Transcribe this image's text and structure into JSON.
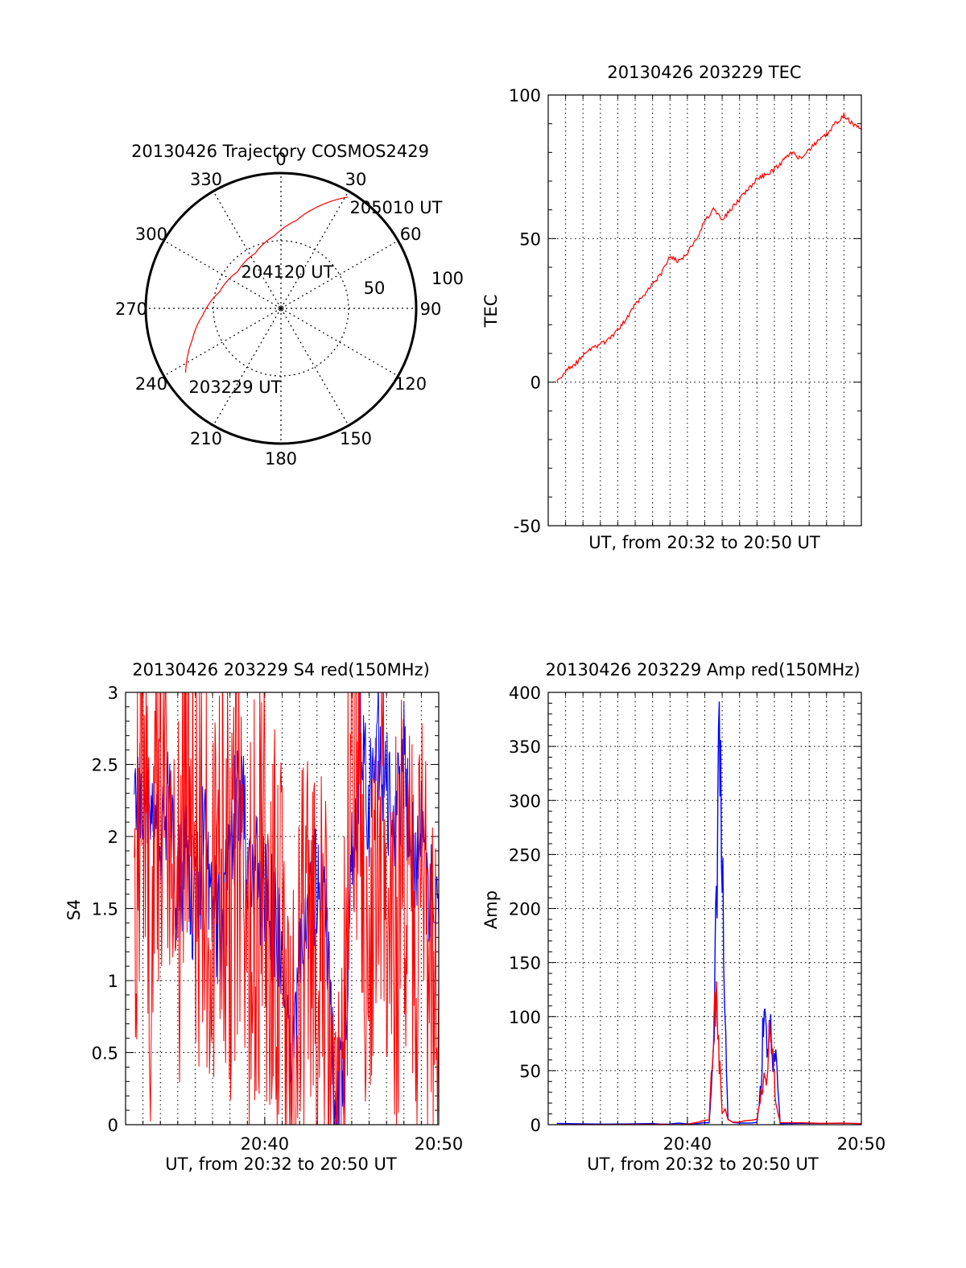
{
  "colors": {
    "red": "#ff0000",
    "blue": "#0000ff",
    "axis": "#000000",
    "background": "#ffffff"
  },
  "chart_data": [
    {
      "id": "trajectory",
      "type": "polar",
      "title": "20130426 Trajectory COSMOS2429",
      "angle_labels": [
        "0",
        "30",
        "60",
        "90",
        "120",
        "150",
        "180",
        "210",
        "240",
        "270",
        "300",
        "330"
      ],
      "radius_labels": [
        "50",
        "100"
      ],
      "radial_max": 100,
      "points": [
        {
          "label": "203229 UT",
          "azimuth": 236,
          "zenith": 85
        },
        {
          "label": "204120 UT",
          "azimuth": 330,
          "zenith": 42
        },
        {
          "label": "205010 UT",
          "azimuth": 31,
          "zenith": 96
        }
      ],
      "track": [
        [
          236,
          85
        ],
        [
          250,
          70
        ],
        [
          265,
          58
        ],
        [
          285,
          47
        ],
        [
          310,
          42
        ],
        [
          335,
          45
        ],
        [
          355,
          54
        ],
        [
          10,
          66
        ],
        [
          20,
          80
        ],
        [
          31,
          96
        ]
      ],
      "grid": true
    },
    {
      "id": "tec",
      "type": "line",
      "title": "20130426 203229 TEC",
      "xlabel": "UT, from 20:32 to 20:50 UT",
      "ylabel": "TEC",
      "xlim": [
        "20:32",
        "20:50"
      ],
      "ylim": [
        -50,
        100
      ],
      "yticks": [
        "-50",
        "0",
        "50",
        "100"
      ],
      "grid": true,
      "series": [
        {
          "color": "red",
          "x": [
            "20:32:30",
            "20:33:00",
            "20:33:30",
            "20:34:00",
            "20:34:30",
            "20:35:00",
            "20:35:30",
            "20:36:00",
            "20:36:30",
            "20:37:00",
            "20:37:30",
            "20:38:00",
            "20:38:30",
            "20:39:00",
            "20:39:30",
            "20:40:00",
            "20:40:30",
            "20:41:00",
            "20:41:30",
            "20:42:00",
            "20:42:30",
            "20:43:00",
            "20:43:30",
            "20:44:00",
            "20:44:30",
            "20:45:00",
            "20:45:30",
            "20:46:00",
            "20:46:30",
            "20:47:00",
            "20:47:30",
            "20:48:00",
            "20:48:30",
            "20:49:00",
            "20:49:30",
            "20:50:00"
          ],
          "values": [
            0,
            4,
            6,
            9,
            12,
            13,
            15,
            18,
            22,
            27,
            30,
            34,
            38,
            44,
            42,
            45,
            50,
            56,
            60,
            57,
            60,
            64,
            67,
            71,
            72,
            74,
            77,
            80,
            78,
            81,
            84,
            86,
            90,
            93,
            90,
            88
          ]
        }
      ]
    },
    {
      "id": "s4",
      "type": "line",
      "title": "20130426 203229 S4 red(150MHz)",
      "xlabel": "UT, from 20:32 to 20:50 UT",
      "ylabel": "S4",
      "xlim": [
        "20:32",
        "20:50"
      ],
      "ylim": [
        0,
        3
      ],
      "yticks": [
        "0",
        "0.5",
        "1",
        "1.5",
        "2",
        "2.5",
        "3"
      ],
      "xticks": [
        "20:40",
        "20:50"
      ],
      "grid": true,
      "series": [
        {
          "color": "blue",
          "x": [
            "20:32:30",
            "20:33:00",
            "20:33:30",
            "20:34:00",
            "20:34:30",
            "20:35:00",
            "20:35:30",
            "20:36:00",
            "20:36:30",
            "20:37:00",
            "20:37:30",
            "20:38:00",
            "20:38:30",
            "20:39:00",
            "20:39:30",
            "20:40:00",
            "20:40:30",
            "20:41:00",
            "20:41:30",
            "20:42:00",
            "20:42:30",
            "20:43:00",
            "20:43:30",
            "20:44:00",
            "20:44:30",
            "20:45:00",
            "20:45:30",
            "20:46:00",
            "20:46:30",
            "20:47:00",
            "20:47:30",
            "20:48:00",
            "20:48:30",
            "20:49:00",
            "20:49:30",
            "20:50:00"
          ],
          "values": [
            2.1,
            2.3,
            2.0,
            1.8,
            2.2,
            1.6,
            1.9,
            1.4,
            2.0,
            1.5,
            1.3,
            1.8,
            2.4,
            1.9,
            1.7,
            1.6,
            1.4,
            1.2,
            0.2,
            1.3,
            1.5,
            1.7,
            1.4,
            0.1,
            0.3,
            1.8,
            2.6,
            2.2,
            2.7,
            2.3,
            2.0,
            2.5,
            1.8,
            2.1,
            1.6,
            1.4
          ]
        },
        {
          "color": "red",
          "x": [
            "20:32:30",
            "20:33:00",
            "20:33:30",
            "20:34:00",
            "20:34:30",
            "20:35:00",
            "20:35:30",
            "20:36:00",
            "20:36:30",
            "20:37:00",
            "20:37:30",
            "20:38:00",
            "20:38:30",
            "20:39:00",
            "20:39:30",
            "20:40:00",
            "20:40:30",
            "20:41:00",
            "20:41:30",
            "20:42:00",
            "20:42:30",
            "20:43:00",
            "20:43:30",
            "20:44:00",
            "20:44:30",
            "20:45:00",
            "20:45:30",
            "20:46:00",
            "20:46:30",
            "20:47:00",
            "20:47:30",
            "20:48:00",
            "20:48:30",
            "20:49:00",
            "20:49:30",
            "20:50:00"
          ],
          "values": [
            1.7,
            2.8,
            1.2,
            2.5,
            1.9,
            1.4,
            2.9,
            1.6,
            1.8,
            1.2,
            2.2,
            1.5,
            1.9,
            1.3,
            1.7,
            1.6,
            1.4,
            1.1,
            0.15,
            1.0,
            1.1,
            0.9,
            1.0,
            0.15,
            0.2,
            2.8,
            2.1,
            1.2,
            2.4,
            1.8,
            1.3,
            2.0,
            1.1,
            1.6,
            0.9,
            1.0
          ]
        }
      ]
    },
    {
      "id": "amp",
      "type": "line",
      "title": "20130426 203229 Amp red(150MHz)",
      "xlabel": "UT, from 20:32 to 20:50 UT",
      "ylabel": "Amp",
      "xlim": [
        "20:32",
        "20:50"
      ],
      "ylim": [
        0,
        400
      ],
      "yticks": [
        "0",
        "50",
        "100",
        "150",
        "200",
        "250",
        "300",
        "350",
        "400"
      ],
      "xticks": [
        "20:40",
        "20:50"
      ],
      "grid": true,
      "series": [
        {
          "color": "blue",
          "x": [
            "20:32:30",
            "20:38:00",
            "20:40:00",
            "20:41:15",
            "20:41:30",
            "20:41:40",
            "20:41:50",
            "20:42:00",
            "20:42:10",
            "20:42:20",
            "20:42:40",
            "20:44:00",
            "20:44:15",
            "20:44:25",
            "20:44:35",
            "20:44:45",
            "20:44:55",
            "20:45:05",
            "20:45:20",
            "20:50:00"
          ],
          "values": [
            1,
            1,
            1,
            2,
            60,
            220,
            335,
            250,
            120,
            5,
            2,
            2,
            40,
            128,
            60,
            100,
            40,
            70,
            1,
            1
          ]
        },
        {
          "color": "red",
          "x": [
            "20:32:30",
            "20:38:00",
            "20:40:00",
            "20:41:15",
            "20:41:30",
            "20:41:40",
            "20:41:50",
            "20:42:00",
            "20:42:10",
            "20:42:20",
            "20:42:40",
            "20:44:00",
            "20:44:15",
            "20:44:25",
            "20:44:35",
            "20:44:45",
            "20:44:55",
            "20:45:05",
            "20:45:20",
            "20:50:00"
          ],
          "values": [
            0,
            0,
            0,
            5,
            80,
            120,
            60,
            10,
            15,
            5,
            2,
            5,
            30,
            45,
            35,
            110,
            60,
            20,
            2,
            1
          ]
        }
      ]
    }
  ]
}
